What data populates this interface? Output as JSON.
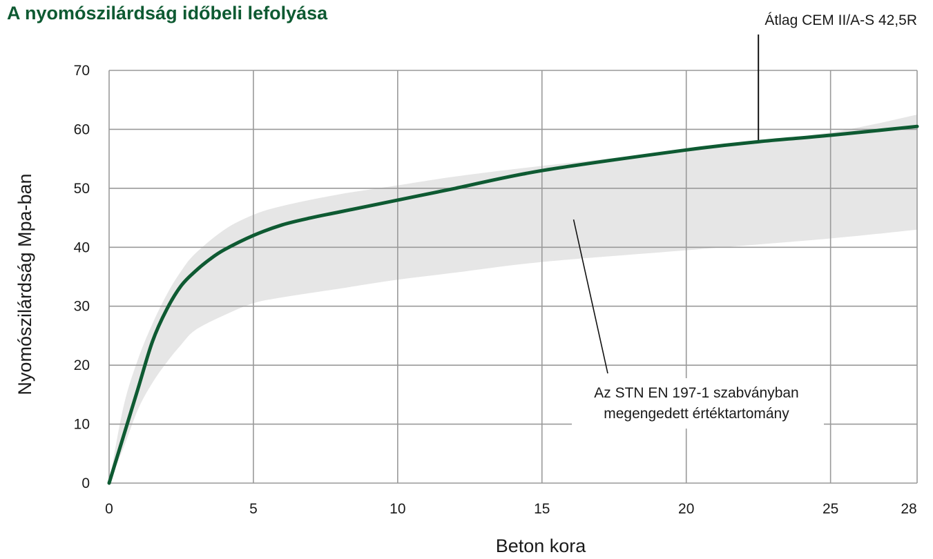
{
  "chart_data": {
    "type": "line",
    "title": "A nyomószilárdság időbeli lefolyása",
    "xlabel": "Beton kora",
    "ylabel": "Nyomószilárdság Mpa-ban",
    "xlim": [
      0,
      28
    ],
    "ylim": [
      0,
      70
    ],
    "xticks": [
      0,
      5,
      10,
      15,
      20,
      25,
      28
    ],
    "yticks": [
      0,
      10,
      20,
      30,
      40,
      50,
      60,
      70
    ],
    "grid": true,
    "series": [
      {
        "name": "Átlag CEM II/A-S 42,5R",
        "color": "#0e5a32",
        "x": [
          0,
          0.5,
          1,
          1.5,
          2,
          2.5,
          3,
          3.5,
          4,
          5,
          6,
          7,
          8,
          10,
          12,
          15,
          20,
          22.5,
          25,
          28
        ],
        "values": [
          0,
          8,
          16,
          24,
          29.5,
          33.5,
          36,
          38,
          39.6,
          42,
          43.8,
          45,
          46,
          48,
          50,
          53,
          56.5,
          57.9,
          59,
          60.5
        ]
      }
    ],
    "band": {
      "name": "Az STN EN 197-1 szabványban megengedett értéktartomány",
      "color": "#e6e6e6",
      "x": [
        0,
        0.5,
        1,
        1.5,
        2,
        2.5,
        3,
        4,
        5,
        6,
        8,
        10,
        12,
        15,
        20,
        25,
        28
      ],
      "upper": [
        0,
        13,
        21,
        27,
        32,
        36,
        39,
        43,
        45.5,
        47,
        49,
        50.5,
        52,
        53.8,
        56.5,
        59.5,
        62.5
      ],
      "lower": [
        0,
        6,
        12.5,
        17,
        20.5,
        23.5,
        26,
        28.5,
        30.5,
        31.5,
        33,
        34.5,
        35.7,
        37.5,
        39.5,
        41.5,
        43
      ]
    },
    "annotations": [
      {
        "id": "series-label",
        "text": "Átlag CEM II/A-S 42,5R",
        "point": [
          22.5,
          57.9
        ]
      },
      {
        "id": "band-label",
        "lines": [
          "Az STN EN 197-1 szabványban",
          "megengedett értéktartomány"
        ],
        "point": [
          16,
          44
        ]
      }
    ]
  }
}
